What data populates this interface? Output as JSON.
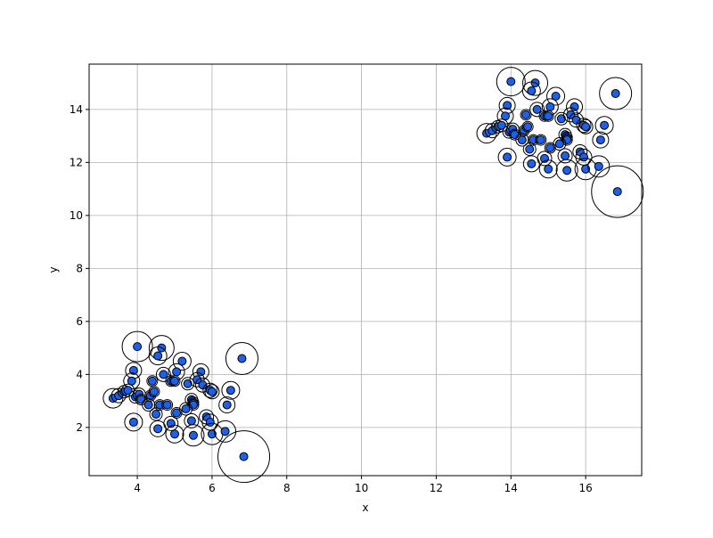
{
  "chart_data": {
    "type": "scatter",
    "xlabel": "x",
    "ylabel": "y",
    "xlim": [
      2.71,
      17.5
    ],
    "ylim": [
      0.18,
      15.71
    ],
    "xticks": [
      4,
      6,
      8,
      10,
      12,
      14,
      16
    ],
    "yticks": [
      2,
      4,
      6,
      8,
      10,
      12,
      14
    ],
    "grid": true,
    "series": [
      {
        "color": "#1f60e8",
        "x": [
          4.0,
          4.65,
          4.55,
          5.2,
          6.8,
          3.9,
          4.7,
          5.05,
          5.7,
          3.85,
          4.4,
          4.9,
          5.0,
          5.35,
          5.6,
          5.75,
          5.95,
          6.0,
          6.5,
          3.35,
          3.5,
          3.65,
          3.75,
          3.95,
          4.05,
          4.1,
          4.35,
          4.45,
          4.3,
          4.6,
          4.8,
          5.45,
          5.5,
          5.5,
          5.3,
          5.05,
          4.5,
          6.4,
          3.9,
          5.45,
          5.85,
          5.95,
          4.9,
          4.55,
          5.0,
          5.5,
          6.0,
          6.35,
          6.85,
          14.0,
          14.65,
          14.55,
          15.2,
          16.8,
          13.9,
          14.7,
          15.05,
          15.7,
          13.85,
          14.4,
          14.9,
          15.0,
          15.35,
          15.6,
          15.75,
          15.95,
          16.0,
          16.5,
          13.35,
          13.5,
          13.65,
          13.75,
          13.95,
          14.05,
          14.1,
          14.35,
          14.45,
          14.3,
          14.6,
          14.8,
          15.45,
          15.5,
          15.5,
          15.3,
          15.05,
          14.5,
          16.4,
          13.9,
          15.45,
          15.85,
          15.95,
          14.9,
          14.55,
          15.0,
          15.5,
          16.0,
          16.35,
          16.85
        ],
        "y": [
          5.05,
          5.0,
          4.7,
          4.5,
          4.6,
          4.15,
          4.0,
          4.1,
          4.1,
          3.75,
          3.75,
          3.75,
          3.75,
          3.65,
          3.8,
          3.6,
          3.4,
          3.35,
          3.4,
          3.1,
          3.2,
          3.35,
          3.4,
          3.15,
          3.25,
          3.05,
          3.2,
          3.35,
          2.85,
          2.85,
          2.85,
          3.05,
          2.95,
          2.85,
          2.7,
          2.55,
          2.5,
          2.85,
          2.2,
          2.25,
          2.4,
          2.2,
          2.15,
          1.95,
          1.75,
          1.7,
          1.75,
          1.85,
          0.9,
          15.05,
          15.0,
          14.7,
          14.5,
          14.6,
          14.15,
          14.0,
          14.1,
          14.1,
          13.75,
          13.8,
          13.75,
          13.75,
          13.65,
          13.8,
          13.6,
          13.4,
          13.35,
          13.4,
          13.1,
          13.2,
          13.35,
          13.4,
          13.15,
          13.25,
          13.05,
          13.2,
          13.35,
          12.85,
          12.85,
          12.85,
          13.05,
          12.95,
          12.85,
          12.7,
          12.55,
          12.5,
          12.85,
          12.2,
          12.25,
          12.4,
          12.2,
          12.15,
          11.95,
          11.75,
          11.7,
          11.75,
          11.85,
          10.9
        ],
        "sizes": [
          17,
          14,
          10,
          10,
          18,
          9,
          8,
          9,
          9,
          9,
          6,
          6,
          6,
          7,
          8,
          8,
          8,
          8,
          10,
          11,
          8,
          7,
          7,
          7,
          7,
          6,
          6,
          6,
          7,
          6,
          6,
          7,
          6,
          6,
          7,
          6,
          7,
          9,
          10,
          8,
          8,
          9,
          8,
          9,
          10,
          12,
          12,
          12,
          29,
          16,
          14,
          10,
          10,
          18,
          9,
          8,
          9,
          9,
          9,
          6,
          6,
          6,
          7,
          8,
          8,
          8,
          8,
          10,
          11,
          8,
          7,
          7,
          7,
          7,
          6,
          6,
          6,
          7,
          6,
          6,
          7,
          6,
          6,
          7,
          6,
          7,
          9,
          10,
          8,
          8,
          9,
          8,
          9,
          10,
          12,
          12,
          12,
          29
        ]
      }
    ]
  }
}
